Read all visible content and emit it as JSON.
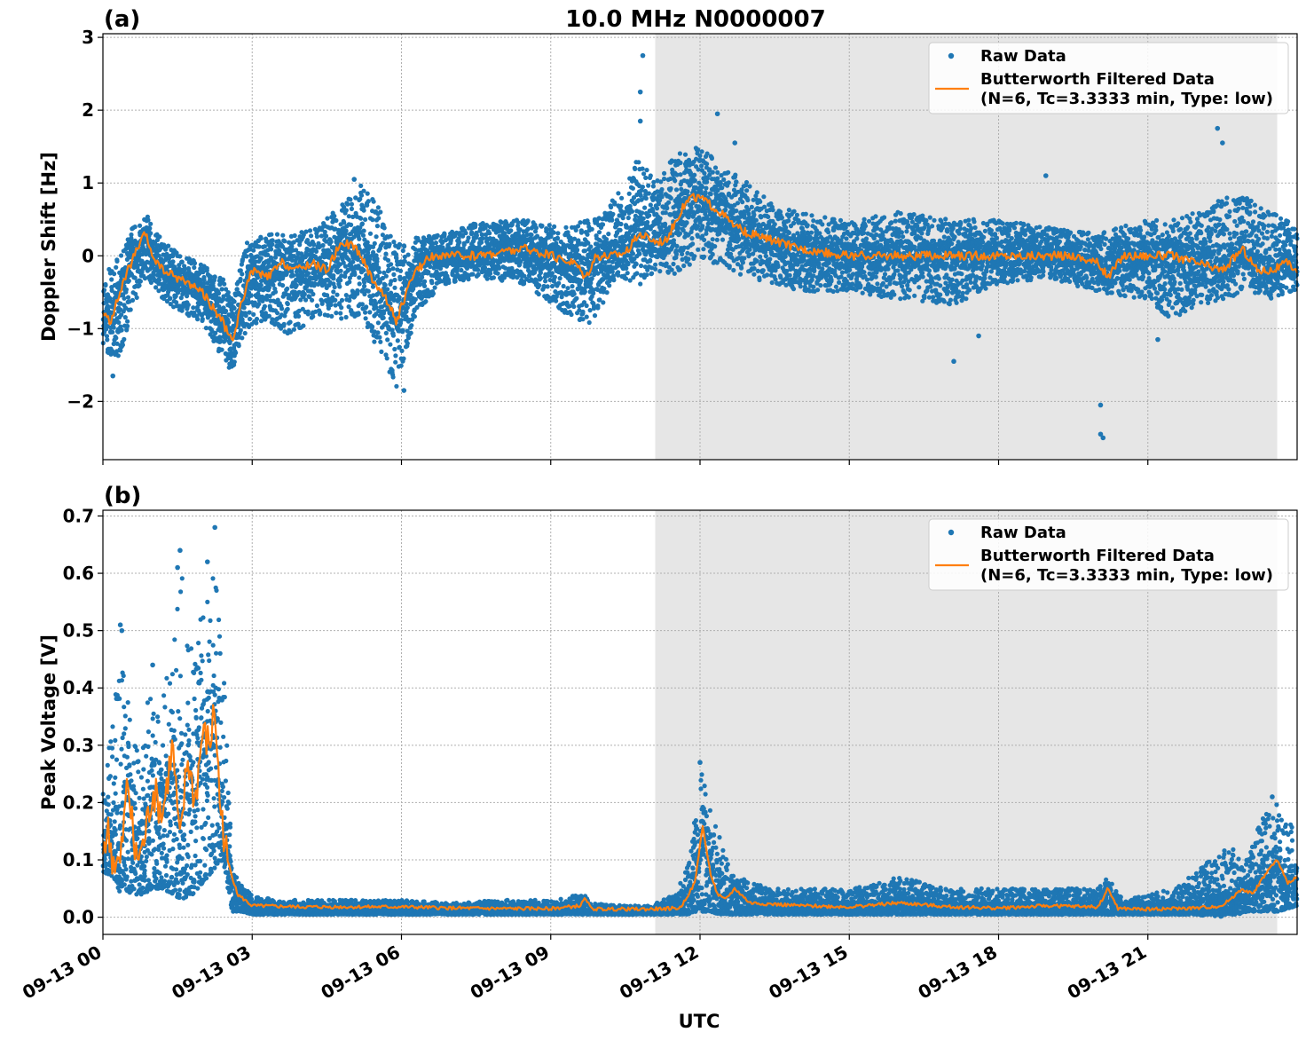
{
  "figure": {
    "title": "10.0 MHz N0000007",
    "xlabel": "UTC"
  },
  "colors": {
    "raw": "#1f77b4",
    "filtered": "#ff7f0e",
    "shade": "#e6e6e6"
  },
  "chart_data": [
    {
      "type": "scatter",
      "panel_label": "(a)",
      "ylabel": "Doppler Shift [Hz]",
      "ylim": [
        -2.8,
        3.05
      ],
      "yticks": [
        -2,
        -1,
        0,
        1,
        2,
        3
      ],
      "ytick_labels": [
        "−2",
        "−1",
        "0",
        "1",
        "2",
        "3"
      ],
      "xlim_hours": [
        0,
        24
      ],
      "xticks_hours": [
        0,
        3,
        6,
        9,
        12,
        15,
        18,
        21
      ],
      "show_xtick_labels": false,
      "grid": true,
      "shaded_span_hours": [
        11.1,
        23.6
      ],
      "legend": {
        "position": "top-right",
        "raw_label": "Raw Data",
        "filtered_label_line1": "Butterworth Filtered Data",
        "filtered_label_line2": "(N=6, Tc=3.3333 min, Type: low)"
      },
      "filtered_series": {
        "name": "Butterworth Filtered Data",
        "x_hours": [
          0,
          0.15,
          0.3,
          0.5,
          0.7,
          0.85,
          1.0,
          1.2,
          1.5,
          1.8,
          2.0,
          2.2,
          2.4,
          2.6,
          2.8,
          3.0,
          3.3,
          3.6,
          3.9,
          4.2,
          4.5,
          4.8,
          5.1,
          5.4,
          5.7,
          5.9,
          6.1,
          6.3,
          6.6,
          7.0,
          7.5,
          8.0,
          8.5,
          9.0,
          9.5,
          9.7,
          9.9,
          10.2,
          10.5,
          10.8,
          11.1,
          11.3,
          11.6,
          11.8,
          12.0,
          12.2,
          12.4,
          12.7,
          13.0,
          13.5,
          14.0,
          14.5,
          15.0,
          15.5,
          16.0,
          16.5,
          17.0,
          17.5,
          18.0,
          18.5,
          19.0,
          19.5,
          20.0,
          20.2,
          20.5,
          21.0,
          21.5,
          22.0,
          22.5,
          22.9,
          23.2,
          23.5,
          23.8,
          24.0
        ],
        "y": [
          -0.8,
          -0.9,
          -0.6,
          -0.2,
          0.1,
          0.3,
          0.0,
          -0.2,
          -0.3,
          -0.4,
          -0.5,
          -0.7,
          -0.9,
          -1.2,
          -0.6,
          -0.2,
          -0.3,
          -0.1,
          -0.2,
          -0.1,
          -0.2,
          0.2,
          0.1,
          -0.3,
          -0.6,
          -0.9,
          -0.5,
          -0.2,
          0.0,
          0.0,
          0.0,
          0.05,
          0.1,
          0.0,
          -0.1,
          -0.3,
          0.0,
          0.0,
          0.05,
          0.3,
          0.2,
          0.2,
          0.6,
          0.8,
          0.8,
          0.7,
          0.6,
          0.4,
          0.3,
          0.2,
          0.1,
          0.05,
          0.0,
          0.0,
          0.0,
          0.0,
          0.0,
          0.0,
          0.0,
          0.0,
          0.0,
          0.0,
          -0.1,
          -0.3,
          0.0,
          0.0,
          0.0,
          -0.1,
          -0.2,
          0.1,
          -0.2,
          -0.2,
          -0.1,
          -0.2
        ]
      },
      "raw_series": {
        "name": "Raw Data",
        "envelope_x_hours": [
          0,
          0.3,
          0.6,
          0.9,
          1.2,
          1.6,
          2.0,
          2.4,
          2.6,
          2.9,
          3.3,
          3.8,
          4.3,
          4.8,
          5.2,
          5.6,
          5.9,
          6.3,
          6.8,
          7.5,
          8.5,
          9.3,
          9.8,
          10.3,
          10.8,
          11.1,
          11.5,
          12.0,
          12.5,
          13.0,
          13.5,
          14.0,
          15.0,
          16.0,
          17.0,
          18.0,
          19.0,
          20.0,
          21.0,
          21.5,
          22.0,
          22.5,
          23.0,
          23.5,
          24.0
        ],
        "envelope_low": [
          -1.3,
          -1.5,
          -0.7,
          -0.3,
          -0.6,
          -0.8,
          -0.9,
          -1.4,
          -1.6,
          -1.0,
          -0.9,
          -1.1,
          -0.8,
          -0.9,
          -0.8,
          -1.4,
          -1.8,
          -0.8,
          -0.4,
          -0.3,
          -0.4,
          -0.8,
          -1.0,
          -0.3,
          -0.4,
          -0.2,
          -0.3,
          0.0,
          -0.2,
          -0.3,
          -0.4,
          -0.5,
          -0.5,
          -0.6,
          -0.7,
          -0.4,
          -0.3,
          -0.5,
          -0.6,
          -0.9,
          -0.7,
          -0.6,
          -0.5,
          -0.6,
          -0.5
        ],
        "envelope_high": [
          -0.3,
          0.0,
          0.4,
          0.55,
          0.2,
          0.0,
          -0.1,
          -0.3,
          -0.6,
          0.2,
          0.3,
          0.3,
          0.4,
          0.7,
          1.0,
          0.6,
          0.2,
          0.25,
          0.3,
          0.45,
          0.5,
          0.4,
          0.5,
          0.8,
          1.4,
          1.0,
          1.4,
          1.5,
          1.2,
          1.0,
          0.7,
          0.6,
          0.5,
          0.6,
          0.5,
          0.5,
          0.4,
          0.3,
          0.5,
          0.5,
          0.6,
          0.8,
          0.8,
          0.6,
          0.4
        ],
        "outliers": [
          [
            10.85,
            2.75
          ],
          [
            10.8,
            2.25
          ],
          [
            10.8,
            1.85
          ],
          [
            12.35,
            1.95
          ],
          [
            12.7,
            1.55
          ],
          [
            22.4,
            1.75
          ],
          [
            22.5,
            1.55
          ],
          [
            18.95,
            1.1
          ],
          [
            5.05,
            1.05
          ],
          [
            20.05,
            -2.05
          ],
          [
            20.05,
            -2.45
          ],
          [
            20.1,
            -2.5
          ],
          [
            17.1,
            -1.45
          ],
          [
            17.6,
            -1.1
          ],
          [
            21.2,
            -1.15
          ],
          [
            6.05,
            -1.85
          ],
          [
            0.2,
            -1.65
          ]
        ]
      }
    },
    {
      "type": "scatter",
      "panel_label": "(b)",
      "ylabel": "Peak Voltage [V]",
      "ylim": [
        -0.03,
        0.71
      ],
      "yticks": [
        0.0,
        0.1,
        0.2,
        0.3,
        0.4,
        0.5,
        0.6,
        0.7
      ],
      "ytick_labels": [
        "0.0",
        "0.1",
        "0.2",
        "0.3",
        "0.4",
        "0.5",
        "0.6",
        "0.7"
      ],
      "xlim_hours": [
        0,
        24
      ],
      "xticks_hours": [
        0,
        3,
        6,
        9,
        12,
        15,
        18,
        21
      ],
      "xtick_labels": [
        "09-13 00",
        "09-13 03",
        "09-13 06",
        "09-13 09",
        "09-13 12",
        "09-13 15",
        "09-13 18",
        "09-13 21"
      ],
      "grid": true,
      "shaded_span_hours": [
        11.1,
        23.6
      ],
      "legend": {
        "position": "top-right",
        "raw_label": "Raw Data",
        "filtered_label_line1": "Butterworth Filtered Data",
        "filtered_label_line2": "(N=6, Tc=3.3333 min, Type: low)"
      },
      "filtered_series": {
        "name": "Butterworth Filtered Data",
        "x_hours": [
          0,
          0.1,
          0.2,
          0.35,
          0.5,
          0.65,
          0.8,
          1.0,
          1.2,
          1.4,
          1.55,
          1.7,
          1.85,
          2.0,
          2.15,
          2.25,
          2.35,
          2.5,
          2.7,
          3.0,
          4.0,
          5.0,
          6.0,
          7.0,
          8.0,
          9.0,
          9.6,
          9.7,
          9.8,
          10.0,
          11.0,
          11.6,
          11.9,
          12.05,
          12.2,
          12.35,
          12.5,
          12.7,
          13.0,
          14.0,
          15.0,
          16.0,
          17.0,
          18.0,
          19.0,
          20.0,
          20.2,
          20.4,
          21.0,
          22.0,
          22.5,
          22.9,
          23.1,
          23.4,
          23.6,
          23.8,
          24.0
        ],
        "y": [
          0.12,
          0.15,
          0.1,
          0.09,
          0.24,
          0.1,
          0.12,
          0.22,
          0.18,
          0.3,
          0.12,
          0.28,
          0.2,
          0.32,
          0.3,
          0.37,
          0.2,
          0.1,
          0.04,
          0.02,
          0.018,
          0.018,
          0.018,
          0.016,
          0.015,
          0.015,
          0.02,
          0.035,
          0.015,
          0.014,
          0.014,
          0.016,
          0.06,
          0.16,
          0.08,
          0.04,
          0.03,
          0.05,
          0.025,
          0.02,
          0.018,
          0.025,
          0.018,
          0.016,
          0.02,
          0.018,
          0.05,
          0.015,
          0.014,
          0.016,
          0.02,
          0.05,
          0.04,
          0.08,
          0.1,
          0.06,
          0.07
        ]
      },
      "raw_series": {
        "name": "Raw Data",
        "envelope_x_hours": [
          0,
          0.2,
          0.4,
          0.6,
          0.8,
          1.0,
          1.2,
          1.4,
          1.6,
          1.8,
          2.0,
          2.2,
          2.4,
          2.6,
          2.8,
          3.0,
          3.5,
          4.0,
          5.0,
          6.0,
          7.0,
          8.0,
          9.0,
          9.6,
          9.8,
          10.5,
          11.0,
          11.5,
          11.8,
          12.0,
          12.2,
          12.4,
          12.6,
          13.0,
          13.5,
          14.0,
          15.0,
          16.0,
          17.0,
          18.0,
          19.0,
          20.0,
          20.2,
          20.5,
          21.0,
          21.5,
          22.0,
          22.5,
          22.8,
          23.0,
          23.3,
          23.6,
          24.0
        ],
        "envelope_low": [
          0.08,
          0.07,
          0.05,
          0.04,
          0.04,
          0.05,
          0.05,
          0.04,
          0.03,
          0.04,
          0.06,
          0.08,
          0.1,
          0.01,
          0.01,
          0.005,
          0.005,
          0.005,
          0.005,
          0.005,
          0.005,
          0.005,
          0.005,
          0.005,
          0.005,
          0.005,
          0.005,
          0.005,
          0.005,
          0.01,
          0.01,
          0.005,
          0.005,
          0.005,
          0.005,
          0.005,
          0.005,
          0.005,
          0.005,
          0.005,
          0.005,
          0.005,
          0.005,
          0.005,
          0.005,
          0.005,
          0.005,
          0.005,
          0.005,
          0.01,
          0.01,
          0.01,
          0.02
        ],
        "envelope_high": [
          0.22,
          0.35,
          0.5,
          0.3,
          0.35,
          0.4,
          0.38,
          0.48,
          0.6,
          0.45,
          0.55,
          0.62,
          0.5,
          0.08,
          0.06,
          0.04,
          0.03,
          0.03,
          0.03,
          0.03,
          0.025,
          0.03,
          0.03,
          0.04,
          0.025,
          0.02,
          0.02,
          0.04,
          0.1,
          0.27,
          0.2,
          0.14,
          0.08,
          0.06,
          0.05,
          0.05,
          0.05,
          0.07,
          0.05,
          0.05,
          0.05,
          0.05,
          0.07,
          0.03,
          0.04,
          0.05,
          0.08,
          0.12,
          0.12,
          0.1,
          0.18,
          0.2,
          0.15
        ],
        "outliers": [
          [
            0.35,
            0.51
          ],
          [
            0.38,
            0.5
          ],
          [
            1.55,
            0.64
          ],
          [
            1.5,
            0.61
          ],
          [
            2.25,
            0.68
          ],
          [
            2.1,
            0.62
          ],
          [
            1.0,
            0.44
          ],
          [
            12.0,
            0.27
          ],
          [
            23.5,
            0.21
          ]
        ]
      }
    }
  ]
}
